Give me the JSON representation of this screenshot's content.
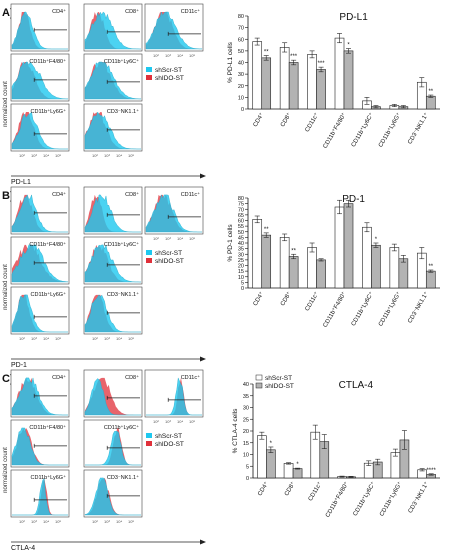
{
  "sections": [
    {
      "letter": "A)",
      "axis_x_label": "PD-L1",
      "axis_y_label": "normalized count",
      "legend": [
        {
          "label": "shScr-ST",
          "color": "#1ec8ef"
        },
        {
          "label": "shIDO-ST",
          "color": "#e0303a"
        }
      ],
      "histograms": [
        "CD4⁺",
        "CD8⁺",
        "CD11c⁺",
        "CD11b⁺F4/80⁺",
        "CD11b⁺Ly6C⁺",
        "CD11b⁺Ly6G⁺",
        "CD3⁻NK1.1⁺"
      ]
    },
    {
      "letter": "B)",
      "axis_x_label": "PD-1",
      "axis_y_label": "normalized count",
      "legend": [
        {
          "label": "shScr-ST",
          "color": "#1ec8ef"
        },
        {
          "label": "shIDO-ST",
          "color": "#e0303a"
        }
      ],
      "histograms": [
        "CD4⁺",
        "CD8⁺",
        "CD11c⁺",
        "CD11b⁺F4/80⁺",
        "CD11b⁺Ly6C⁺",
        "CD11b⁺Ly6G⁺",
        "CD3⁻NK1.1⁺"
      ]
    },
    {
      "letter": "C)",
      "axis_x_label": "CTLA-4",
      "axis_y_label": "normalized count",
      "legend": [
        {
          "label": "shScr-ST",
          "color": "#1ec8ef"
        },
        {
          "label": "shIDO-ST",
          "color": "#e0303a"
        }
      ],
      "histograms": [
        "CD4⁺",
        "CD8⁺",
        "CD11c⁺",
        "CD11b⁺F4/80⁺",
        "CD11b⁺Ly6C⁺",
        "CD11b⁺Ly6G⁺",
        "CD3⁻NK1.1⁺"
      ]
    }
  ],
  "histogram_tick_labels": [
    "10²",
    "10³",
    "10⁴",
    "10⁵"
  ],
  "chart_data": [
    {
      "type": "bar",
      "title": "PD-L1",
      "ylabel": "% PD-L1 cells",
      "ylim": [
        0,
        80
      ],
      "yticks": [
        0,
        10,
        20,
        30,
        40,
        50,
        60,
        70,
        80
      ],
      "categories": [
        "CD4⁺",
        "CD8⁺",
        "CD11c⁺",
        "CD11b⁺F4/80⁺",
        "CD11b⁺Ly6C⁺",
        "CD11b⁺Ly6G⁺",
        "CD3⁻NK1.1⁺"
      ],
      "series": [
        {
          "values": [
            58,
            53,
            47,
            61,
            7,
            3,
            23
          ],
          "errors": [
            3,
            4,
            3,
            4,
            3,
            1,
            4
          ],
          "color": "#ffffff"
        },
        {
          "values": [
            44,
            40,
            34,
            50,
            2,
            2,
            11
          ],
          "errors": [
            2,
            2,
            2,
            2,
            1,
            1,
            1
          ],
          "color": "#b3b3b3"
        }
      ],
      "annotations": [
        "**",
        "***",
        "***",
        "*",
        "",
        "",
        "**"
      ]
    },
    {
      "type": "bar",
      "title": "PD-1",
      "ylabel": "% PD-1 cells",
      "ylim": [
        0,
        80
      ],
      "yticks": [
        0,
        5,
        10,
        15,
        20,
        25,
        30,
        35,
        40,
        45,
        50,
        55,
        60,
        65,
        70,
        75,
        80
      ],
      "categories": [
        "CD4⁺",
        "CD8⁺",
        "CD11c⁺",
        "CD11b⁺F4/80⁺",
        "CD11b⁺Ly6C⁺",
        "CD11b⁺Ly6G⁺",
        "CD3⁻NK1.1⁺"
      ],
      "series": [
        {
          "values": [
            61,
            45,
            36,
            72,
            54,
            36,
            31
          ],
          "errors": [
            3,
            3,
            4,
            6,
            4,
            3,
            5
          ],
          "color": "#ffffff"
        },
        {
          "values": [
            47,
            28,
            25,
            75,
            38,
            26,
            15
          ],
          "errors": [
            2,
            2,
            1,
            3,
            2,
            3,
            1
          ],
          "color": "#b3b3b3"
        }
      ],
      "annotations": [
        "**",
        "**",
        "",
        "",
        "*",
        "",
        "**"
      ]
    },
    {
      "type": "bar",
      "title": "CTLA-4",
      "ylabel": "% CTLA-4 cells",
      "ylim": [
        0,
        40
      ],
      "yticks": [
        0,
        5,
        10,
        15,
        20,
        25,
        30,
        35,
        40
      ],
      "categories": [
        "CD4⁺",
        "CD8⁺",
        "CD11c⁺",
        "CD11b⁺F4/80⁺",
        "CD11b⁺Ly6C⁺",
        "CD11b⁺Ly6G⁺",
        "CD3⁻NK1.1⁺"
      ],
      "series": [
        {
          "name": "shScr-ST",
          "values": [
            18,
            6.2,
            19.5,
            0.6,
            6.3,
            10.8,
            3.5
          ],
          "errors": [
            1.5,
            0.3,
            3,
            0.2,
            1,
            1.5,
            0.5
          ],
          "color": "#ffffff"
        },
        {
          "name": "shIDO-ST",
          "values": [
            12,
            4,
            15.5,
            0.5,
            6.8,
            16.2,
            1.5
          ],
          "errors": [
            1.2,
            0.2,
            3,
            0.2,
            1.2,
            4,
            0.3
          ],
          "color": "#b3b3b3"
        }
      ],
      "annotations": [
        "*",
        "*",
        "",
        "",
        "",
        "",
        "****"
      ],
      "legend_position": "top-left"
    }
  ]
}
